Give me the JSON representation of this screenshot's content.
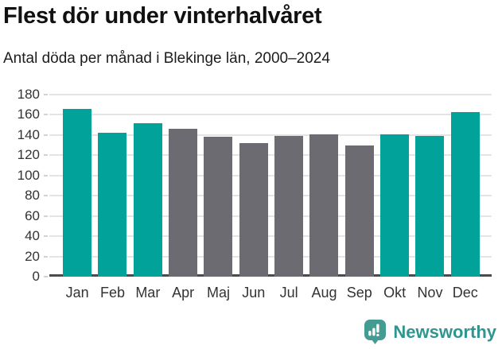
{
  "header": {
    "title": "Flest dör under vinterhalvåret",
    "subtitle": "Antal döda per månad i Blekinge län, 2000–2024"
  },
  "chart_data": {
    "type": "bar",
    "title": "Flest dör under vinterhalvåret",
    "subtitle": "Antal döda per månad i Blekinge län, 2000–2024",
    "categories": [
      "Jan",
      "Feb",
      "Mar",
      "Apr",
      "Maj",
      "Jun",
      "Jul",
      "Aug",
      "Sep",
      "Okt",
      "Nov",
      "Dec"
    ],
    "values": [
      166,
      142,
      152,
      146,
      138,
      132,
      139,
      141,
      130,
      141,
      139,
      163
    ],
    "highlighted": [
      true,
      true,
      true,
      false,
      false,
      false,
      false,
      false,
      false,
      true,
      true,
      true
    ],
    "xlabel": "",
    "ylabel": "",
    "ylim": [
      0,
      180
    ],
    "ytick_step": 20,
    "yticks": [
      0,
      20,
      40,
      60,
      80,
      100,
      120,
      140,
      160,
      180
    ],
    "grid": true,
    "legend": "none",
    "colors": {
      "highlight": "#00a29a",
      "base": "#6b6b71",
      "gridline": "#e4e4e4",
      "axis_line": "#4a4a50",
      "tick_label": "#333333"
    }
  },
  "footer": {
    "brand": "Newsworthy",
    "brand_color": "#2f968f",
    "icon": "newsworthy-speech-bubble-barchart-icon",
    "icon_color": "#459a91"
  }
}
